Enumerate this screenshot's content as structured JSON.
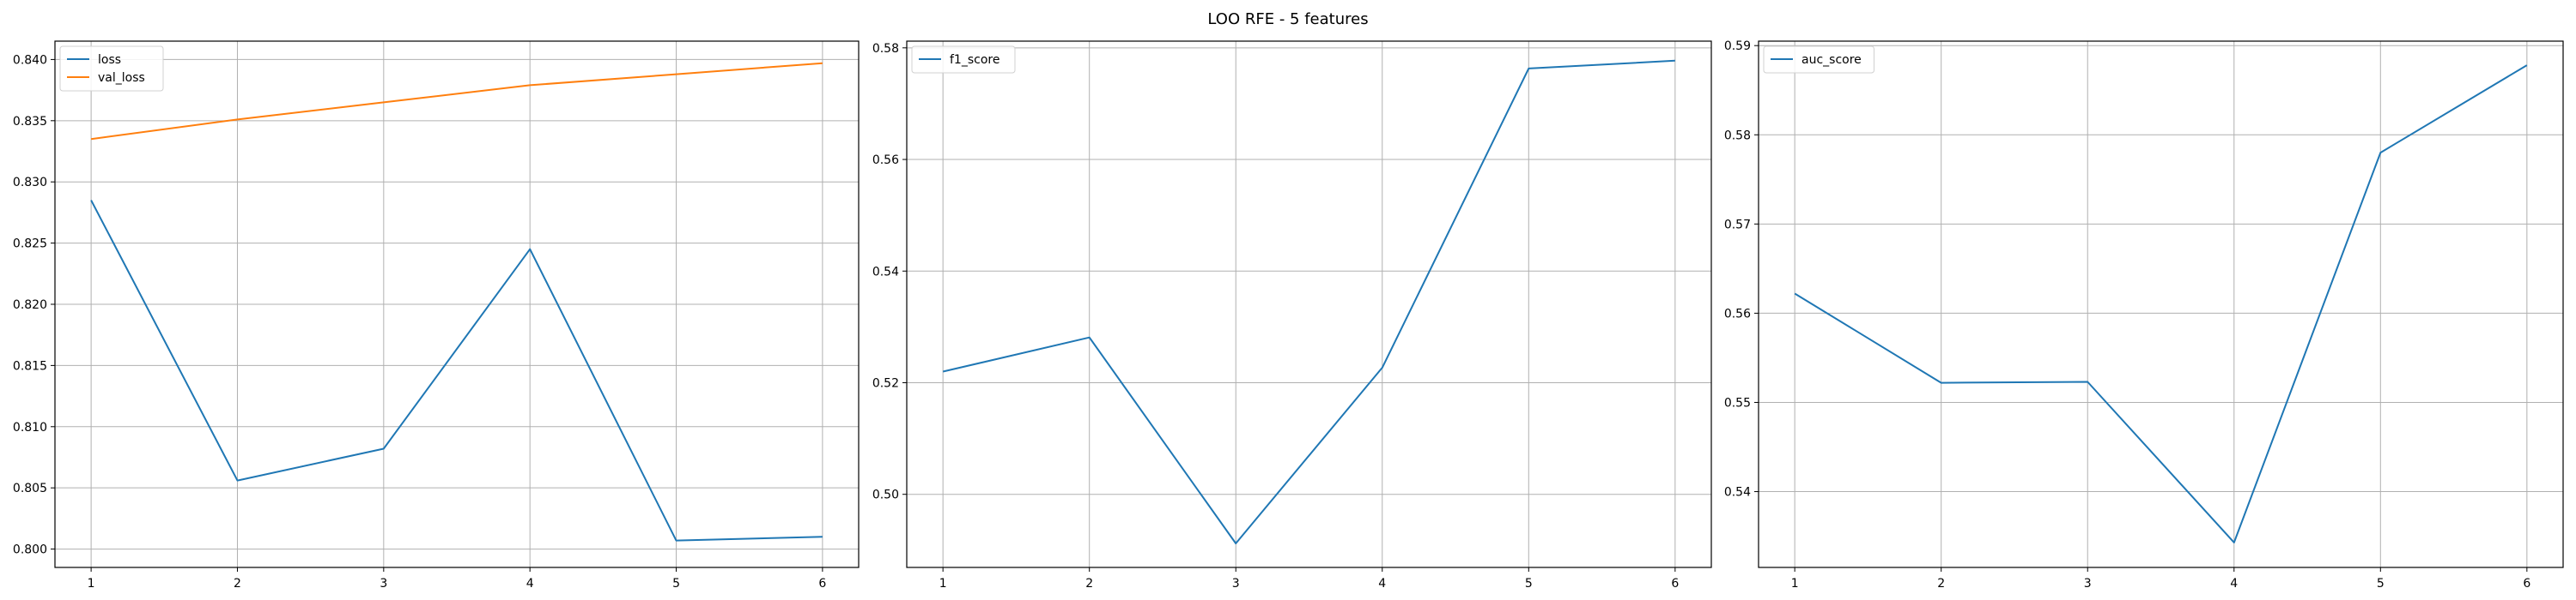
{
  "figure": {
    "title": "LOO RFE - 5 features"
  },
  "colors": {
    "blue": "#1f77b4",
    "orange": "#ff7f0e",
    "grid": "#b0b0b0"
  },
  "chart_data": [
    {
      "type": "line",
      "x": [
        1,
        2,
        3,
        4,
        5,
        6
      ],
      "xticks": [
        1,
        2,
        3,
        4,
        5,
        6
      ],
      "ylim": [
        0.7985,
        0.8415
      ],
      "yticks": [
        0.8,
        0.805,
        0.81,
        0.815,
        0.82,
        0.825,
        0.83,
        0.835,
        0.84
      ],
      "ytick_labels": [
        "0.800",
        "0.805",
        "0.810",
        "0.815",
        "0.820",
        "0.825",
        "0.830",
        "0.835",
        "0.840"
      ],
      "grid": true,
      "legend_position": "upper-left",
      "series": [
        {
          "name": "loss",
          "color": "#1f77b4",
          "values": [
            0.8285,
            0.8056,
            0.8082,
            0.8245,
            0.8007,
            0.801
          ]
        },
        {
          "name": "val_loss",
          "color": "#ff7f0e",
          "values": [
            0.8335,
            0.8351,
            0.8365,
            0.8379,
            0.8388,
            0.8397
          ]
        }
      ]
    },
    {
      "type": "line",
      "x": [
        1,
        2,
        3,
        4,
        5,
        6
      ],
      "xticks": [
        1,
        2,
        3,
        4,
        5,
        6
      ],
      "ylim": [
        0.4869,
        0.5812
      ],
      "yticks": [
        0.5,
        0.52,
        0.54,
        0.56,
        0.58
      ],
      "ytick_labels": [
        "0.50",
        "0.52",
        "0.54",
        "0.56",
        "0.58"
      ],
      "grid": true,
      "legend_position": "upper-left",
      "series": [
        {
          "name": "f1_score",
          "color": "#1f77b4",
          "values": [
            0.522,
            0.5281,
            0.4912,
            0.5227,
            0.5763,
            0.5777
          ]
        }
      ]
    },
    {
      "type": "line",
      "x": [
        1,
        2,
        3,
        4,
        5,
        6
      ],
      "xticks": [
        1,
        2,
        3,
        4,
        5,
        6
      ],
      "ylim": [
        0.5315,
        0.5905
      ],
      "yticks": [
        0.54,
        0.55,
        0.56,
        0.57,
        0.58,
        0.59
      ],
      "ytick_labels": [
        "0.54",
        "0.55",
        "0.56",
        "0.57",
        "0.58",
        "0.59"
      ],
      "grid": true,
      "legend_position": "upper-left",
      "series": [
        {
          "name": "auc_score",
          "color": "#1f77b4",
          "values": [
            0.5622,
            0.5522,
            0.5523,
            0.5343,
            0.578,
            0.5878
          ]
        }
      ]
    }
  ]
}
